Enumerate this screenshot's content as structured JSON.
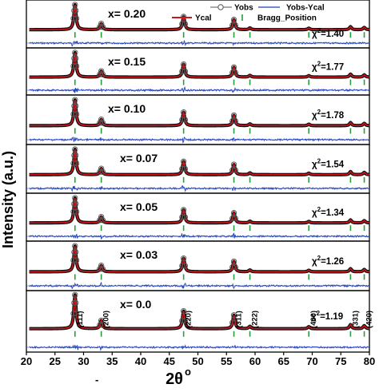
{
  "chart_data": {
    "type": "line",
    "xlabel": "2θ",
    "xlabel_superscript": "o",
    "ylabel": "Intensity (a.u.)",
    "xlim": [
      20,
      80
    ],
    "x_ticks": [
      "20",
      "25",
      "30",
      "35",
      "40",
      "45",
      "50",
      "55",
      "60",
      "65",
      "70",
      "75",
      "80"
    ],
    "legend": {
      "position": "top-right",
      "entries": [
        {
          "label": "Yobs",
          "color": "#555555",
          "marker": "circle"
        },
        {
          "label": "Yobs-Ycal",
          "color": "#1f3fbf",
          "marker": "line"
        },
        {
          "label": "Ycal",
          "color": "#d0141b",
          "marker": "line"
        },
        {
          "label": "Bragg_Position",
          "color": "#2a9d3a",
          "marker": "tick"
        }
      ]
    },
    "colors": {
      "yobs": "#555555",
      "ycal": "#d0141b",
      "diff": "#1f3fbf",
      "bragg": "#2a9d3a"
    },
    "peaks": [
      {
        "two_theta": 28.5,
        "rel_intensity": 1.0,
        "hkl": "(111)"
      },
      {
        "two_theta": 33.1,
        "rel_intensity": 0.24,
        "hkl": "(200)"
      },
      {
        "two_theta": 47.5,
        "rel_intensity": 0.52,
        "hkl": "(220)"
      },
      {
        "two_theta": 56.3,
        "rel_intensity": 0.4,
        "hkl": "(311)"
      },
      {
        "two_theta": 59.1,
        "rel_intensity": 0.07,
        "hkl": "(222)"
      },
      {
        "two_theta": 69.4,
        "rel_intensity": 0.06,
        "hkl": "(400)"
      },
      {
        "two_theta": 76.7,
        "rel_intensity": 0.12,
        "hkl": "(331)"
      },
      {
        "two_theta": 79.1,
        "rel_intensity": 0.09,
        "hkl": "(420)"
      }
    ],
    "series": [
      {
        "name": "x= 0.20",
        "chi2": "1.40"
      },
      {
        "name": "x= 0.15",
        "chi2": "1.77"
      },
      {
        "name": "x= 0.10",
        "chi2": "1.78"
      },
      {
        "name": "x= 0.07",
        "chi2": "1.54"
      },
      {
        "name": "x= 0.05",
        "chi2": "1.34"
      },
      {
        "name": "x= 0.03",
        "chi2": "1.26"
      },
      {
        "name": "x= 0.0",
        "chi2": "1.19"
      }
    ],
    "chi2_symbol": "χ",
    "chi2_exponent": "2",
    "chi2_equals": "=",
    "bottom_mark": "-",
    "grid": false
  }
}
